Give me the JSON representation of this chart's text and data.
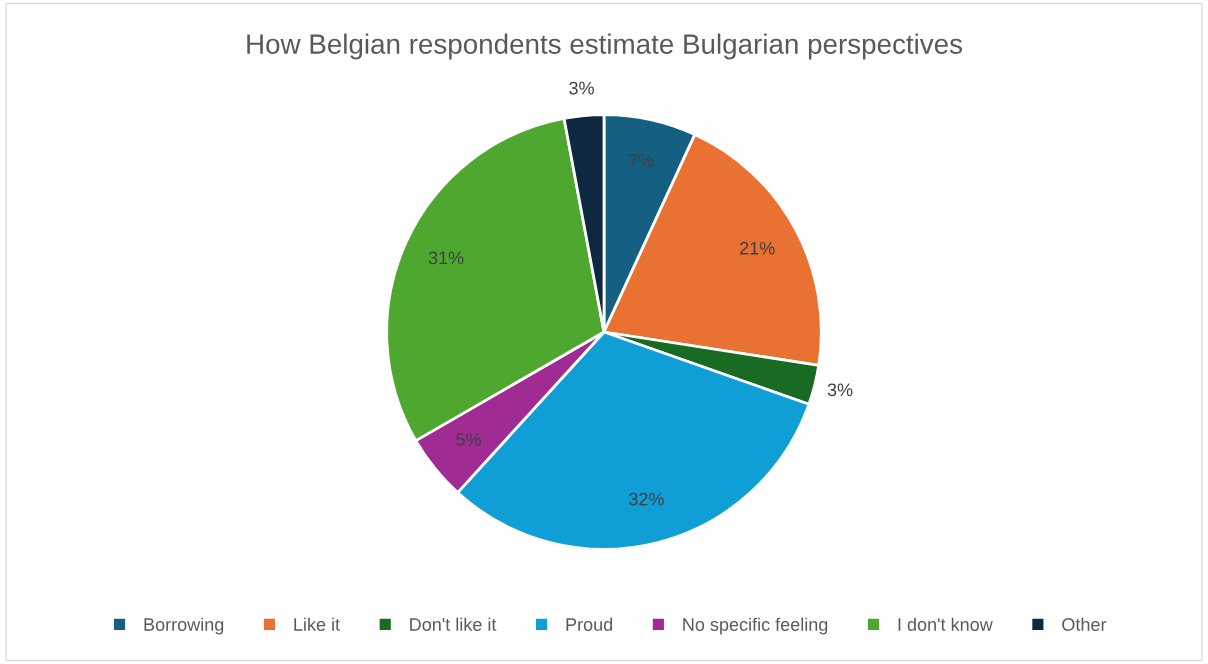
{
  "chart_data": {
    "type": "pie",
    "title": "How Belgian respondents estimate Bulgarian perspectives",
    "categories": [
      "Borrowing",
      "Like it",
      "Don't like it",
      "Proud",
      "No specific feeling",
      "I don't know",
      "Other"
    ],
    "values": [
      7,
      21,
      3,
      32,
      5,
      31,
      3
    ],
    "value_labels": [
      "7%",
      "21%",
      "3%",
      "32%",
      "5%",
      "31%",
      "3%"
    ],
    "colors": [
      "#156082",
      "#e97132",
      "#196b24",
      "#0f9ed5",
      "#a02b93",
      "#4ea72e",
      "#0e2841"
    ],
    "legend": "bottom"
  }
}
